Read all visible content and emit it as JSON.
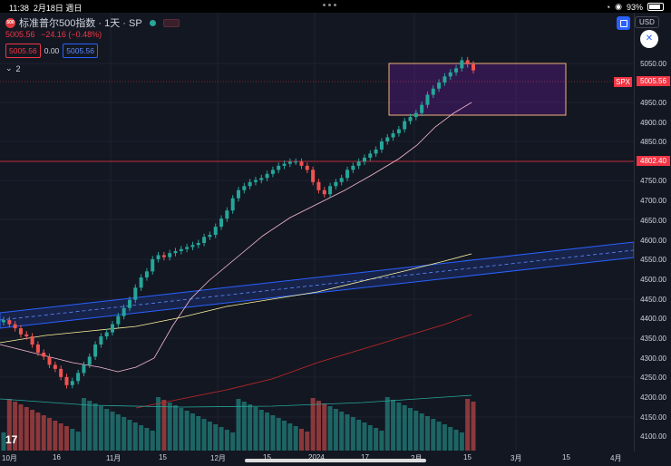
{
  "status": {
    "time": "11:38",
    "date": "2月18日 週日",
    "battery": "93%"
  },
  "header": {
    "symbol_logo": "500",
    "title": "标准普尔500指数 · 1天 · SP",
    "price": "5005.56",
    "change": "−24.16 (−0.48%)",
    "bid": "5005.56",
    "spread": "0.00",
    "ask": "5005.56",
    "indicators_count": "2"
  },
  "toolbar": {
    "currency": "USD"
  },
  "axis": {
    "ticks": [
      "5050.00",
      "4950.00",
      "4900.00",
      "4850.00",
      "4800.00",
      "4750.00",
      "4700.00",
      "4650.00",
      "4600.00",
      "4550.00",
      "4500.00",
      "4450.00",
      "4400.00",
      "4350.00",
      "4300.00",
      "4250.00",
      "4200.00",
      "4150.00",
      "4100.00"
    ],
    "symbol_tag": "SPX",
    "last_price": "5005.56",
    "level_price": "4802.40"
  },
  "time_axis": [
    "10月",
    "16",
    "11月",
    "15",
    "12月",
    "15",
    "2024",
    "17",
    "2月",
    "15",
    "3月",
    "15",
    "4月"
  ],
  "colors": {
    "up": "#26a69a",
    "down": "#ef5350",
    "background": "#131722",
    "accent": "#2962ff"
  },
  "chart_data": {
    "type": "candlestick",
    "y_range": [
      4080,
      5080
    ],
    "markers": {
      "horizontal_level": 4802.4,
      "last": 5005.56
    },
    "series": [
      {
        "name": "SPX",
        "values": [
          4390,
          4380,
          4370,
          4355,
          4350,
          4330,
          4310,
          4300,
          4280,
          4270,
          4250,
          4230,
          4240,
          4260,
          4280,
          4300,
          4330,
          4350,
          4360,
          4380,
          4400,
          4420,
          4440,
          4470,
          4495,
          4510,
          4540,
          4550,
          4545,
          4555,
          4560,
          4565,
          4570,
          4575,
          4580,
          4595,
          4600,
          4620,
          4640,
          4660,
          4690,
          4710,
          4720,
          4730,
          4735,
          4740,
          4750,
          4760,
          4770,
          4775,
          4780,
          4780,
          4770,
          4760,
          4730,
          4710,
          4700,
          4720,
          4730,
          4740,
          4760,
          4770,
          4780,
          4790,
          4800,
          4810,
          4830,
          4840,
          4850,
          4860,
          4880,
          4890,
          4900,
          4920,
          4945,
          4960,
          4975,
          4990,
          5000,
          5010,
          5030,
          5020,
          5005
        ]
      }
    ]
  }
}
